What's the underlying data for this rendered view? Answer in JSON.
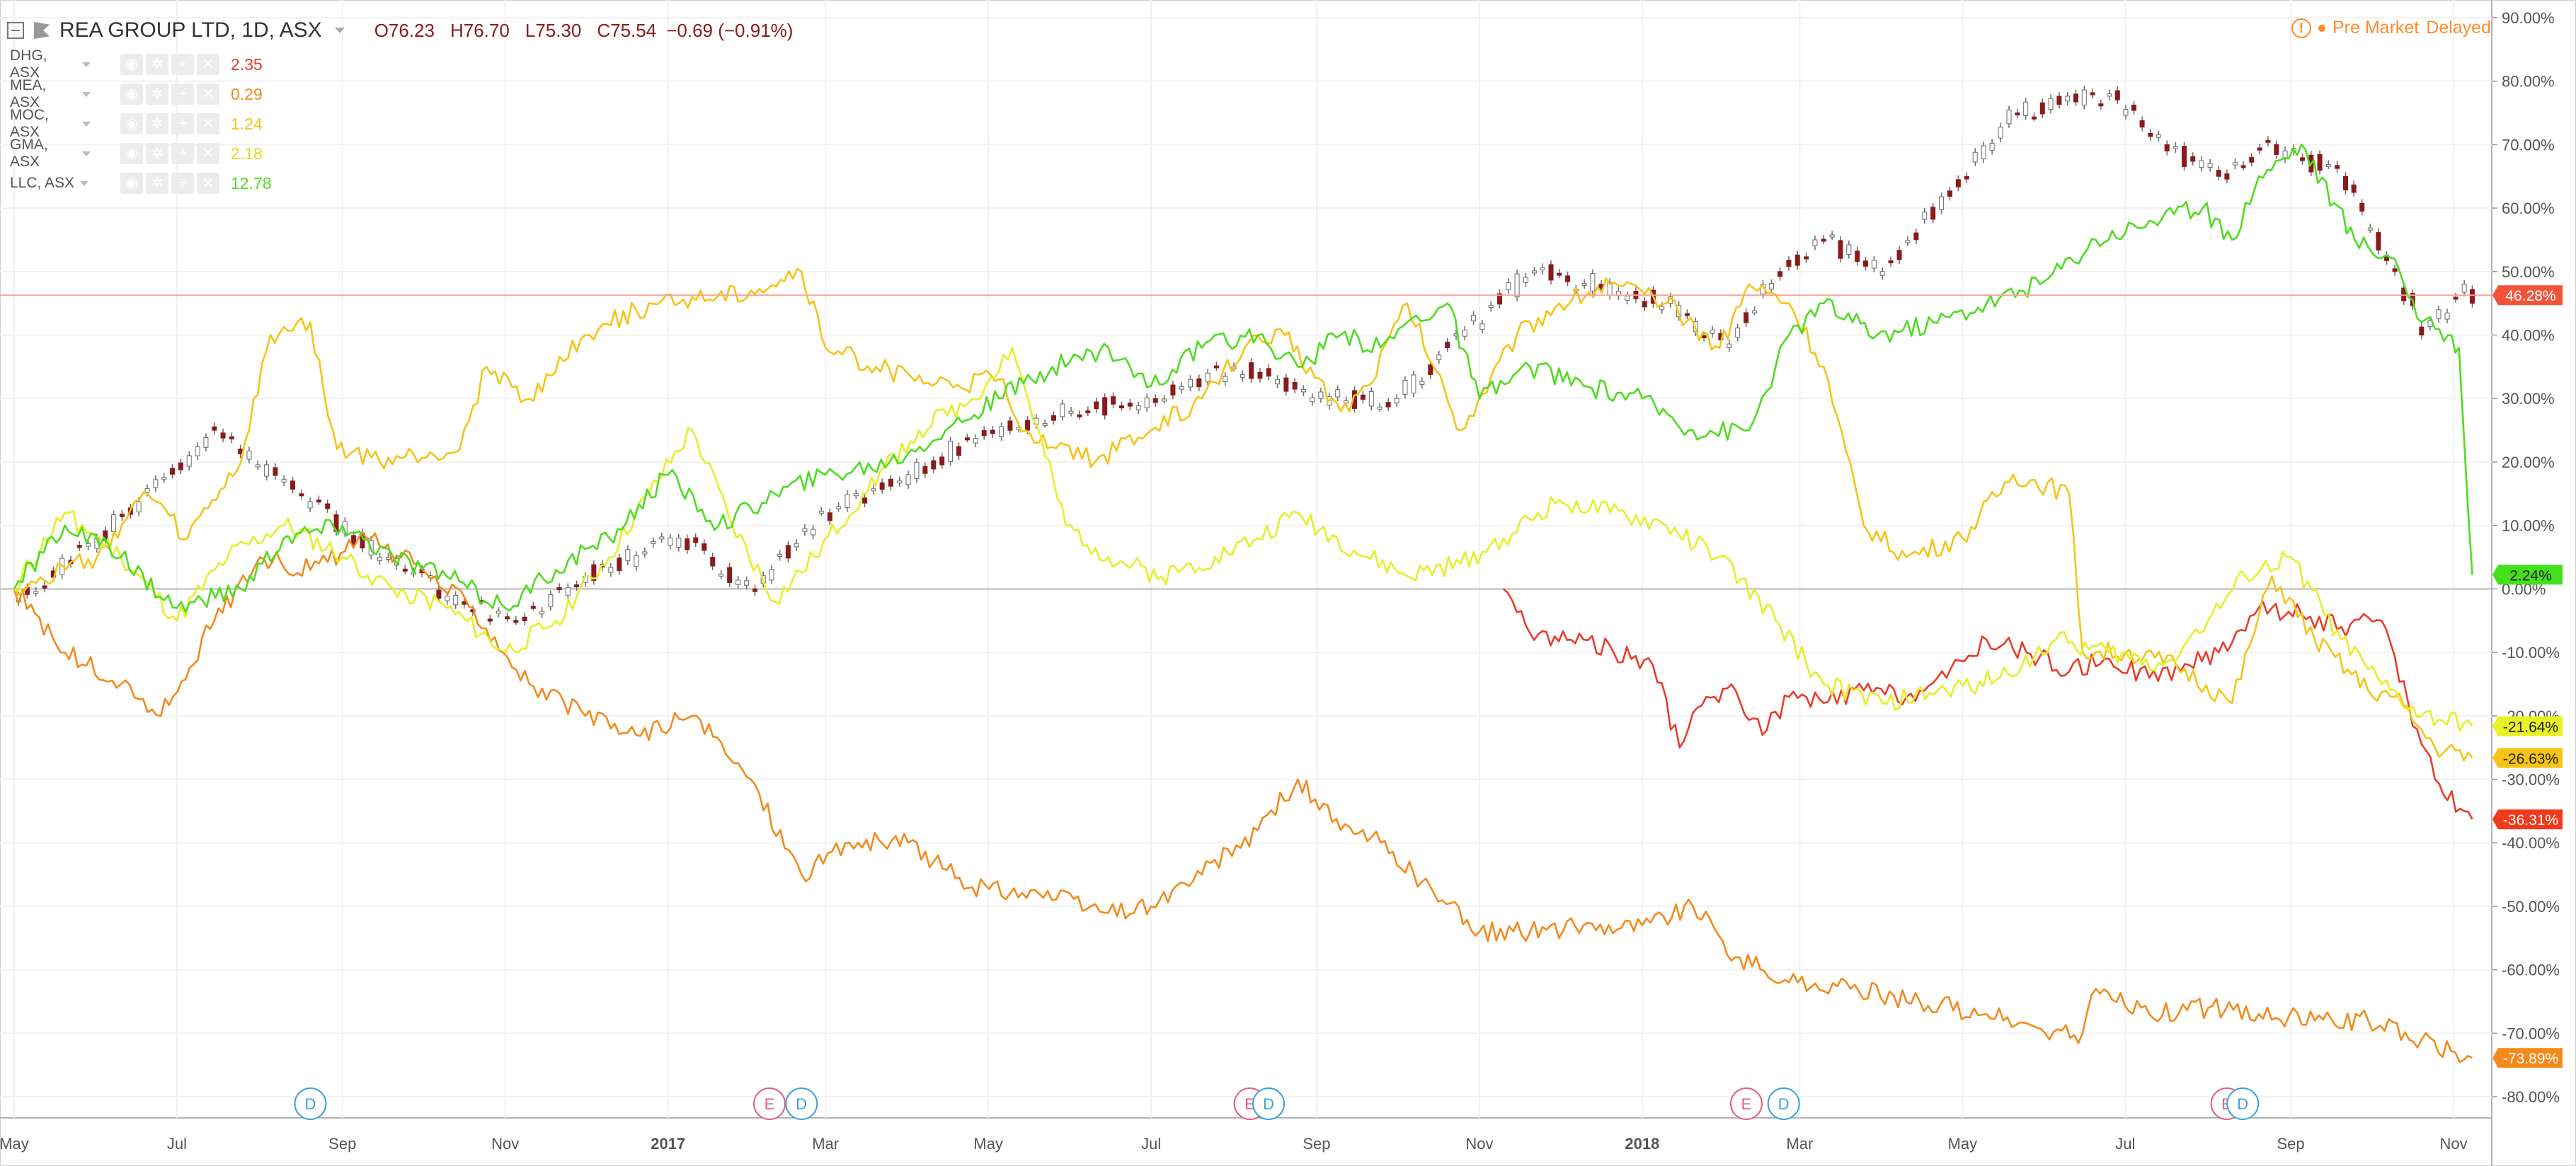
{
  "header": {
    "symbol": "REA GROUP LTD, 1D, ASX",
    "open": "O76.23",
    "high": "H76.70",
    "low": "L75.30",
    "close": "C75.54",
    "change": "−0.69 (−0.91%)"
  },
  "status": {
    "label": "Pre Market",
    "delayed": "Delayed"
  },
  "legend": [
    {
      "name": "DHG, ASX",
      "value": "2.35",
      "color": "#e83c2c"
    },
    {
      "name": "MEA, ASX",
      "value": "0.29",
      "color": "#f28a1d"
    },
    {
      "name": "MOC, ASX",
      "value": "1.24",
      "color": "#f5c416"
    },
    {
      "name": "GMA, ASX",
      "value": "2.18",
      "color": "#e4ef27"
    },
    {
      "name": "LLC, ASX",
      "value": "12.78",
      "color": "#4fdc1f"
    }
  ],
  "chart_data": {
    "type": "line",
    "x_ticks": [
      "May",
      "Jul",
      "Sep",
      "Nov",
      "2017",
      "Mar",
      "May",
      "Jul",
      "Sep",
      "Nov",
      "2018",
      "Mar",
      "May",
      "Jul",
      "Sep",
      "Nov"
    ],
    "bold_ticks": [
      "2017",
      "2018"
    ],
    "y_ticks": [
      "90.00%",
      "80.00%",
      "70.00%",
      "60.00%",
      "50.00%",
      "40.00%",
      "30.00%",
      "20.00%",
      "10.00%",
      "0.00%",
      "-10.00%",
      "-20.00%",
      "-30.00%",
      "-40.00%",
      "-50.00%",
      "-60.00%",
      "-70.00%",
      "-80.00%"
    ],
    "ylim": [
      -82,
      91
    ],
    "current_badges": [
      {
        "label": "46.28%",
        "value": 46.28,
        "color": "#f2543a"
      },
      {
        "label": "2.24%",
        "value": 2.24,
        "color": "#43e01c"
      },
      {
        "label": "-21.64%",
        "value": -21.64,
        "color": "#e7f126"
      },
      {
        "label": "-26.63%",
        "value": -26.63,
        "color": "#f5c416"
      },
      {
        "label": "-36.31%",
        "value": -36.31,
        "color": "#f2391c"
      },
      {
        "label": "-73.89%",
        "value": -73.89,
        "color": "#f58a1a"
      }
    ],
    "events": [
      {
        "type": "D",
        "x": "2016-08-20"
      },
      {
        "type": "E",
        "x": "2017-02-08"
      },
      {
        "type": "D",
        "x": "2017-02-20"
      },
      {
        "type": "E",
        "x": "2017-08-07"
      },
      {
        "type": "D",
        "x": "2017-08-14"
      },
      {
        "type": "E",
        "x": "2018-02-09"
      },
      {
        "type": "D",
        "x": "2018-02-23"
      },
      {
        "type": "E",
        "x": "2018-08-08"
      },
      {
        "type": "D",
        "x": "2018-08-14"
      }
    ],
    "series": [
      {
        "name": "REA GROUP LTD",
        "style": "candles",
        "color": "#8b1a1a",
        "x": [
          "2016-05-01",
          "2016-06-01",
          "2016-07-15",
          "2016-08-15",
          "2016-09-15",
          "2016-10-15",
          "2016-11-05",
          "2016-12-01",
          "2017-01-05",
          "2017-02-01",
          "2017-03-01",
          "2017-04-01",
          "2017-05-01",
          "2017-06-01",
          "2017-07-01",
          "2017-08-01",
          "2017-09-01",
          "2017-10-01",
          "2017-10-20",
          "2017-11-20",
          "2017-12-15",
          "2018-01-10",
          "2018-02-01",
          "2018-02-20",
          "2018-03-10",
          "2018-04-01",
          "2018-05-01",
          "2018-05-20",
          "2018-06-25",
          "2018-07-15",
          "2018-08-05",
          "2018-08-25",
          "2018-09-20",
          "2018-10-10",
          "2018-10-20",
          "2018-11-05",
          "2018-11-08"
        ],
        "y": [
          -2,
          8,
          25,
          15,
          5,
          -2,
          -5,
          2,
          8,
          0,
          12,
          18,
          25,
          28,
          30,
          35,
          30,
          30,
          38,
          50,
          48,
          45,
          38,
          50,
          55,
          50,
          65,
          75,
          78,
          70,
          65,
          70,
          65,
          50,
          40,
          48,
          45
        ]
      },
      {
        "name": "DHG, ASX",
        "style": "line",
        "color": "#e83c2c",
        "x": [
          "2017-11-10",
          "2017-11-20",
          "2017-12-10",
          "2018-01-05",
          "2018-01-15",
          "2018-01-25",
          "2018-02-05",
          "2018-02-15",
          "2018-02-25",
          "2018-03-10",
          "2018-03-25",
          "2018-04-10",
          "2018-04-25",
          "2018-05-10",
          "2018-05-25",
          "2018-06-10",
          "2018-06-25",
          "2018-07-10",
          "2018-07-25",
          "2018-08-05",
          "2018-08-20",
          "2018-09-05",
          "2018-09-20",
          "2018-10-05",
          "2018-10-15",
          "2018-10-25",
          "2018-11-05",
          "2018-11-08"
        ],
        "y": [
          0,
          -7,
          -8,
          -12,
          -25,
          -17,
          -16,
          -23,
          -17,
          -18,
          -16,
          -17,
          -14,
          -8,
          -10,
          -13,
          -11,
          -14,
          -12,
          -10,
          -3,
          -4,
          -6,
          -5,
          -18,
          -30,
          -35,
          -36.3
        ]
      },
      {
        "name": "MEA, ASX",
        "style": "line",
        "color": "#f28a1d",
        "x": [
          "2016-05-01",
          "2016-05-20",
          "2016-06-10",
          "2016-06-25",
          "2016-07-15",
          "2016-08-01",
          "2016-08-20",
          "2016-09-10",
          "2016-10-01",
          "2016-10-20",
          "2016-11-10",
          "2016-12-01",
          "2016-12-20",
          "2017-01-10",
          "2017-02-01",
          "2017-02-20",
          "2017-03-10",
          "2017-04-01",
          "2017-04-25",
          "2017-05-20",
          "2017-06-15",
          "2017-07-01",
          "2017-07-20",
          "2017-08-10",
          "2017-08-25",
          "2017-09-10",
          "2017-09-25",
          "2017-10-15",
          "2017-11-01",
          "2017-11-20",
          "2017-12-10",
          "2018-01-01",
          "2018-01-20",
          "2018-02-05",
          "2018-02-25",
          "2018-03-20",
          "2018-04-15",
          "2018-05-10",
          "2018-06-01",
          "2018-06-15",
          "2018-06-20",
          "2018-07-10",
          "2018-08-01",
          "2018-08-20",
          "2018-09-10",
          "2018-09-30",
          "2018-10-20",
          "2018-11-08"
        ],
        "y": [
          0,
          -10,
          -15,
          -20,
          -5,
          5,
          3,
          8,
          3,
          -3,
          -15,
          -20,
          -23,
          -20,
          -30,
          -45,
          -40,
          -40,
          -47,
          -48,
          -51,
          -50,
          -45,
          -38,
          -30,
          -38,
          -40,
          -48,
          -54,
          -54,
          -53,
          -53,
          -50,
          -58,
          -62,
          -63,
          -65,
          -67,
          -70,
          -70,
          -63,
          -67,
          -66,
          -67,
          -68,
          -68,
          -71,
          -73.9
        ]
      },
      {
        "name": "MOC, ASX",
        "style": "line",
        "color": "#f5c416",
        "x": [
          "2016-05-01",
          "2016-06-01",
          "2016-06-20",
          "2016-07-05",
          "2016-07-25",
          "2016-08-05",
          "2016-08-20",
          "2016-08-30",
          "2016-09-15",
          "2016-10-15",
          "2016-10-25",
          "2016-11-10",
          "2016-12-01",
          "2016-12-20",
          "2017-01-10",
          "2017-02-01",
          "2017-02-20",
          "2017-03-01",
          "2017-03-20",
          "2017-04-10",
          "2017-05-05",
          "2017-05-15",
          "2017-06-10",
          "2017-07-01",
          "2017-07-20",
          "2017-08-05",
          "2017-08-20",
          "2017-09-10",
          "2017-09-20",
          "2017-10-05",
          "2017-10-25",
          "2017-11-15",
          "2017-12-01",
          "2017-12-20",
          "2018-01-10",
          "2018-01-30",
          "2018-02-10",
          "2018-02-25",
          "2018-03-10",
          "2018-03-25",
          "2018-04-10",
          "2018-05-01",
          "2018-05-20",
          "2018-06-10",
          "2018-06-15",
          "2018-07-01",
          "2018-07-20",
          "2018-08-10",
          "2018-08-25",
          "2018-09-10",
          "2018-09-30",
          "2018-10-10",
          "2018-10-25",
          "2018-11-08"
        ],
        "y": [
          0,
          5,
          15,
          8,
          20,
          40,
          42,
          22,
          20,
          22,
          35,
          30,
          40,
          44,
          46,
          47,
          50,
          38,
          35,
          32,
          33,
          25,
          20,
          25,
          30,
          38,
          40,
          28,
          32,
          45,
          25,
          40,
          45,
          48,
          45,
          38,
          48,
          45,
          35,
          10,
          5,
          8,
          18,
          15,
          -10,
          -10,
          -12,
          -18,
          2,
          -8,
          -16,
          -17,
          -25,
          -26.6
        ]
      },
      {
        "name": "GMA, ASX",
        "style": "line",
        "color": "#e4ef27",
        "x": [
          "2016-05-01",
          "2016-05-20",
          "2016-06-10",
          "2016-07-01",
          "2016-07-20",
          "2016-08-10",
          "2016-09-01",
          "2016-09-20",
          "2016-10-10",
          "2016-11-01",
          "2016-11-20",
          "2016-12-10",
          "2016-12-25",
          "2017-01-10",
          "2017-01-25",
          "2017-02-10",
          "2017-02-25",
          "2017-03-15",
          "2017-04-05",
          "2017-04-25",
          "2017-05-10",
          "2017-05-30",
          "2017-06-15",
          "2017-07-05",
          "2017-07-25",
          "2017-08-10",
          "2017-08-25",
          "2017-09-15",
          "2017-10-05",
          "2017-10-25",
          "2017-11-10",
          "2017-12-01",
          "2017-12-20",
          "2018-01-10",
          "2018-01-30",
          "2018-02-20",
          "2018-03-10",
          "2018-04-01",
          "2018-04-25",
          "2018-05-15",
          "2018-06-05",
          "2018-06-25",
          "2018-07-15",
          "2018-08-01",
          "2018-08-15",
          "2018-09-01",
          "2018-09-20",
          "2018-10-05",
          "2018-10-20",
          "2018-11-08"
        ],
        "y": [
          0,
          12,
          5,
          -5,
          5,
          10,
          5,
          0,
          -3,
          -10,
          -5,
          5,
          15,
          25,
          10,
          -2,
          5,
          15,
          25,
          30,
          38,
          10,
          5,
          2,
          5,
          8,
          12,
          6,
          2,
          4,
          8,
          14,
          12,
          10,
          5,
          -5,
          -15,
          -18,
          -16,
          -14,
          -8,
          -10,
          -12,
          -5,
          2,
          5,
          -8,
          -15,
          -20,
          -21.6
        ]
      },
      {
        "name": "LLC, ASX",
        "style": "line",
        "color": "#4fdc1f",
        "x": [
          "2016-05-01",
          "2016-05-20",
          "2016-06-10",
          "2016-07-01",
          "2016-07-25",
          "2016-08-10",
          "2016-09-01",
          "2016-09-20",
          "2016-10-10",
          "2016-11-01",
          "2016-11-20",
          "2016-12-10",
          "2017-01-01",
          "2017-01-20",
          "2017-02-10",
          "2017-03-01",
          "2017-03-25",
          "2017-04-15",
          "2017-05-05",
          "2017-05-25",
          "2017-06-15",
          "2017-07-01",
          "2017-07-20",
          "2017-08-10",
          "2017-08-25",
          "2017-09-10",
          "2017-09-25",
          "2017-10-05",
          "2017-10-20",
          "2017-11-01",
          "2017-11-20",
          "2017-12-10",
          "2018-01-01",
          "2018-01-20",
          "2018-02-10",
          "2018-02-25",
          "2018-03-10",
          "2018-03-30",
          "2018-04-20",
          "2018-05-10",
          "2018-05-30",
          "2018-06-20",
          "2018-07-10",
          "2018-07-30",
          "2018-08-10",
          "2018-08-20",
          "2018-09-05",
          "2018-09-25",
          "2018-10-10",
          "2018-10-20",
          "2018-10-30",
          "2018-11-03",
          "2018-11-08"
        ],
        "y": [
          0,
          10,
          5,
          -3,
          0,
          8,
          10,
          5,
          2,
          -3,
          3,
          8,
          18,
          10,
          15,
          18,
          20,
          25,
          30,
          35,
          38,
          32,
          38,
          40,
          35,
          40,
          38,
          42,
          45,
          30,
          35,
          32,
          30,
          25,
          25,
          40,
          45,
          40,
          42,
          45,
          48,
          55,
          58,
          60,
          55,
          65,
          70,
          55,
          52,
          42,
          40,
          38,
          2.2
        ]
      }
    ]
  }
}
